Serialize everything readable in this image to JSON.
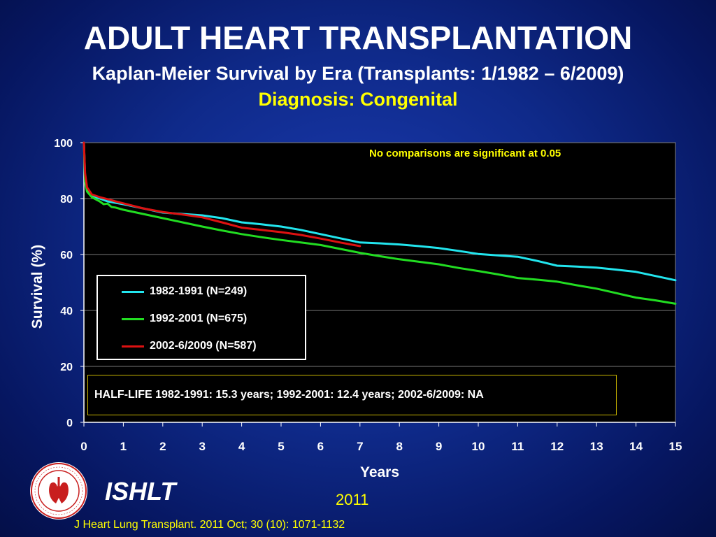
{
  "header": {
    "title": "ADULT HEART TRANSPLANTATION",
    "subtitle": "Kaplan-Meier Survival by Era (Transplants: 1/1982 – 6/2009)",
    "diagnosis": "Diagnosis: Congenital"
  },
  "footer": {
    "org": "ISHLT",
    "year": "2011",
    "citation": "J Heart Lung Transplant. 2011 Oct; 30 (10): 1071-1132",
    "logo_icon": "ishlt-seal-icon"
  },
  "chart_data": {
    "type": "line",
    "title": "",
    "xlabel": "Years",
    "ylabel": "Survival (%)",
    "xlim": [
      0,
      15
    ],
    "ylim": [
      0,
      100
    ],
    "x_ticks": [
      "0",
      "1",
      "2",
      "3",
      "4",
      "5",
      "6",
      "7",
      "8",
      "9",
      "10",
      "11",
      "12",
      "13",
      "14",
      "15"
    ],
    "y_ticks": [
      "0",
      "20",
      "40",
      "60",
      "80",
      "100"
    ],
    "grid": "horizontal",
    "legend_placement": "left",
    "annotation": "No comparisons  are significant at 0.05",
    "half_life_note": "HALF-LIFE 1982-1991: 15.3 years; 1992-2001: 12.4 years; 2002-6/2009: NA",
    "series": [
      {
        "name": "1982-1991 (N=249)",
        "color": "#22e5ee",
        "x": [
          0,
          0.03,
          0.08,
          0.2,
          0.4,
          0.6,
          0.8,
          1,
          1.5,
          2,
          2.5,
          3,
          3.5,
          4,
          4.5,
          5,
          5.5,
          6,
          6.5,
          7,
          7.5,
          8,
          8.5,
          9,
          9.5,
          10,
          10.5,
          11,
          11.5,
          12,
          12.5,
          13,
          13.5,
          14,
          14.5,
          15
        ],
        "y": [
          100,
          88,
          83,
          81,
          80,
          79,
          78.5,
          78,
          76.5,
          75,
          74.5,
          74,
          73,
          71.5,
          70.8,
          70,
          68.8,
          67.3,
          65.8,
          64.3,
          64,
          63.6,
          63,
          62.3,
          61.3,
          60.2,
          59.7,
          59.2,
          57.7,
          56,
          55.7,
          55.3,
          54.6,
          53.8,
          52.3,
          50.8
        ]
      },
      {
        "name": "1992-2001 (N=675)",
        "color": "#22dd22",
        "x": [
          0,
          0.03,
          0.08,
          0.2,
          0.4,
          0.5,
          0.6,
          0.7,
          0.8,
          1,
          1.5,
          2,
          2.5,
          3,
          3.5,
          4,
          4.5,
          5,
          5.5,
          6,
          6.5,
          7,
          7.5,
          8,
          8.5,
          9,
          9.5,
          10,
          10.5,
          11,
          11.5,
          12,
          12.5,
          13,
          13.5,
          14,
          14.5,
          15
        ],
        "y": [
          100,
          86,
          82.5,
          80.5,
          79,
          78,
          78.2,
          77,
          76.8,
          76,
          74.5,
          73,
          71.5,
          70,
          68.6,
          67.3,
          66.2,
          65.2,
          64.3,
          63.4,
          62,
          60.6,
          59.4,
          58.3,
          57.4,
          56.5,
          55.2,
          54.1,
          52.9,
          51.6,
          51,
          50.3,
          49,
          47.8,
          46.2,
          44.6,
          43.6,
          42.4
        ]
      },
      {
        "name": "2002-6/2009 (N=587)",
        "color": "#dd1111",
        "x": [
          0,
          0.03,
          0.08,
          0.2,
          0.4,
          0.6,
          0.8,
          1,
          1.5,
          2,
          2.5,
          3,
          3.5,
          4,
          4.5,
          5,
          5.5,
          6,
          6.5,
          7
        ],
        "y": [
          100,
          89,
          84,
          81.5,
          80.5,
          79.8,
          79,
          78.3,
          76.5,
          75.2,
          74.3,
          73.3,
          71.5,
          69.6,
          68.8,
          68,
          67,
          65.7,
          64.3,
          63
        ]
      }
    ]
  }
}
